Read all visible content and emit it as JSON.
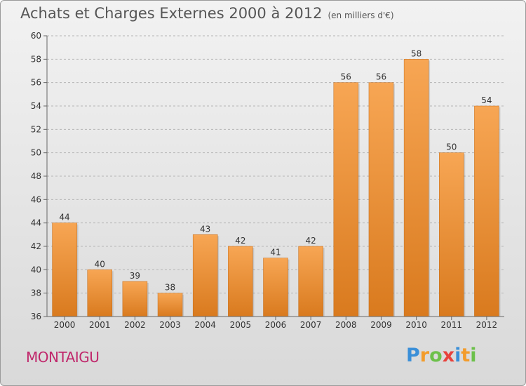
{
  "chart_data": {
    "type": "bar",
    "title": "Achats et Charges Externes 2000 à 2012",
    "subtitle": "(en milliers d'€)",
    "categories": [
      "2000",
      "2001",
      "2002",
      "2003",
      "2004",
      "2005",
      "2006",
      "2007",
      "2008",
      "2009",
      "2010",
      "2011",
      "2012"
    ],
    "values": [
      44,
      40,
      39,
      38,
      43,
      42,
      41,
      42,
      56,
      56,
      58,
      50,
      54
    ],
    "ylim": [
      36,
      60
    ],
    "yticks": [
      36,
      38,
      40,
      42,
      44,
      46,
      48,
      50,
      52,
      54,
      56,
      58,
      60
    ],
    "grid": true,
    "bar_color_top": "#f7a654",
    "bar_color_bottom": "#d97a1e"
  },
  "location": "MONTAIGU",
  "logo": {
    "letters": [
      "P",
      "r",
      "o",
      "x",
      "i",
      "t",
      "i"
    ],
    "colors": [
      "#3a8fd8",
      "#f39c2b",
      "#6cc04a",
      "#e8423c",
      "#3a8fd8",
      "#f39c2b",
      "#6cc04a"
    ]
  }
}
